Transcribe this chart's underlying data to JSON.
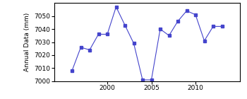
{
  "years": [
    1996,
    1997,
    1998,
    1999,
    2000,
    2001,
    2002,
    2003,
    2004,
    2005,
    2006,
    2007,
    2008,
    2009,
    2010,
    2011,
    2012,
    2013
  ],
  "values": [
    7008,
    7026,
    7024,
    7036,
    7036,
    7057,
    7043,
    7029,
    7001,
    7001,
    7040,
    7035,
    7046,
    7054,
    7051,
    7031,
    7042,
    7042
  ],
  "line_color": "#4444cc",
  "marker": "s",
  "marker_size": 2.5,
  "ylabel": "Annual Data (mm)",
  "xlim": [
    1994,
    2015
  ],
  "ylim": [
    7000,
    7060
  ],
  "yticks": [
    7000,
    7010,
    7020,
    7030,
    7040,
    7050
  ],
  "xticks": [
    2000,
    2005,
    2010
  ],
  "background_color": "#ffffff"
}
